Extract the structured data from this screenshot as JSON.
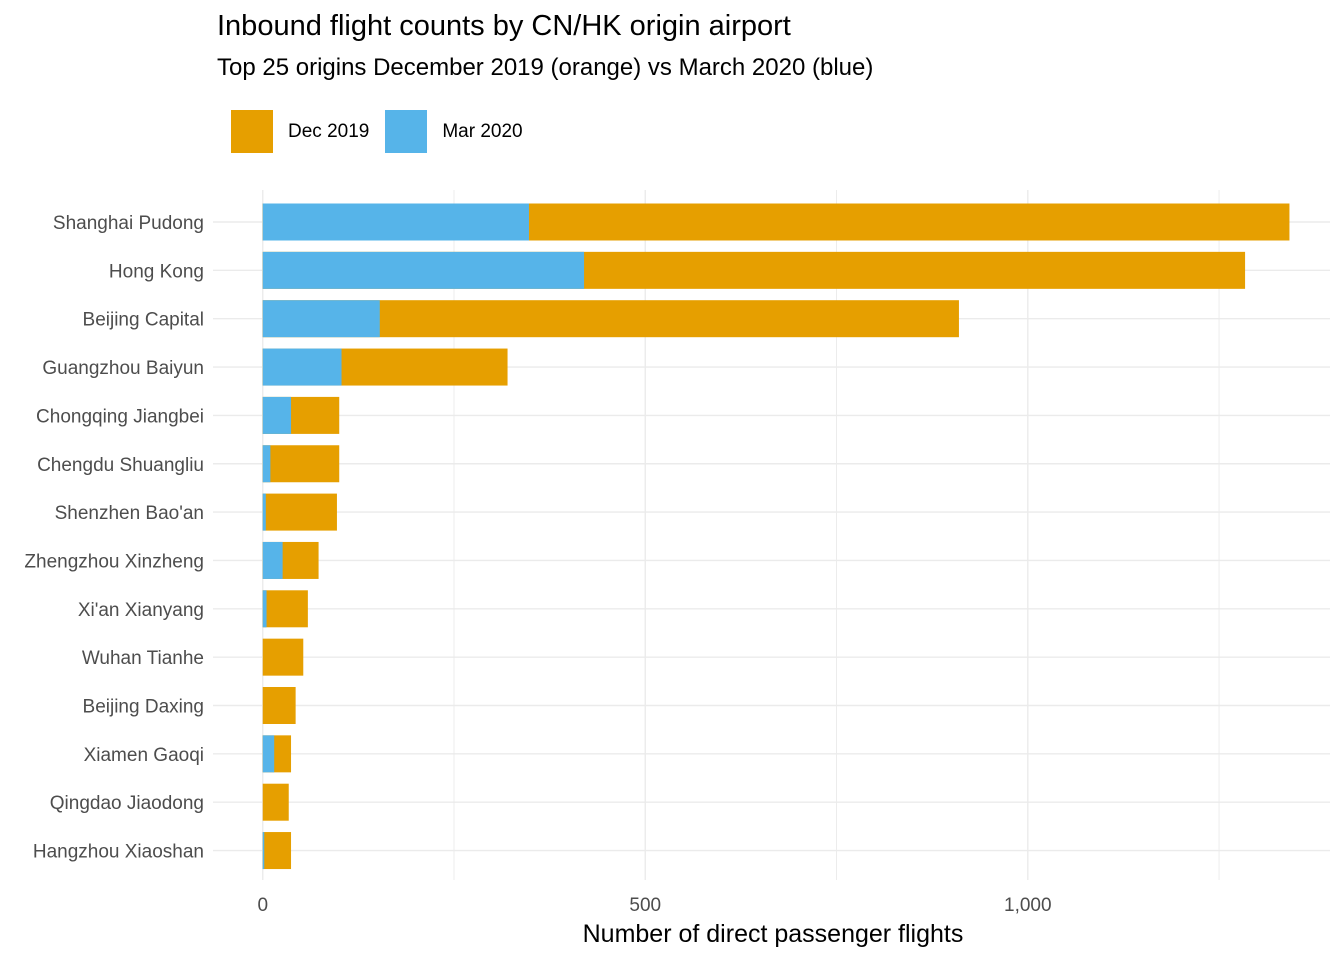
{
  "chart_data": {
    "type": "bar",
    "orientation": "horizontal",
    "title": "Inbound flight counts by CN/HK origin airport",
    "subtitle": "Top 25 origins  December 2019 (orange) vs March 2020 (blue)",
    "xlabel": "Number of direct passenger flights",
    "ylabel": "",
    "xlim": [
      -65,
      1395
    ],
    "x_ticks": [
      0,
      500,
      1000
    ],
    "x_tick_labels": [
      "0",
      "500",
      "1,000"
    ],
    "grid": true,
    "legend_position": "top-left",
    "categories": [
      "Shanghai Pudong",
      "Hong Kong",
      "Beijing Capital",
      "Guangzhou Baiyun",
      "Chongqing Jiangbei",
      "Chengdu Shuangliu",
      "Shenzhen Bao'an",
      "Zhengzhou Xinzheng",
      "Xi'an Xianyang",
      "Wuhan Tianhe",
      "Beijing Daxing",
      "Xiamen Gaoqi",
      "Qingdao Jiaodong",
      "Hangzhou Xiaoshan"
    ],
    "series": [
      {
        "name": "Dec 2019",
        "color": "#E69F00",
        "values": [
          1342,
          1284,
          910,
          320,
          100,
          100,
          97,
          73,
          59,
          53,
          43,
          37,
          34,
          37
        ]
      },
      {
        "name": "Mar 2020",
        "color": "#56B4E9",
        "values": [
          348,
          420,
          153,
          103,
          37,
          10,
          4,
          26,
          5,
          0,
          0,
          15,
          0,
          2
        ]
      }
    ]
  }
}
